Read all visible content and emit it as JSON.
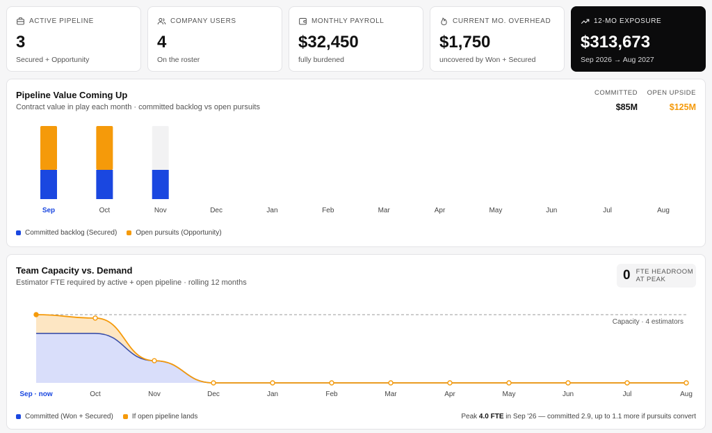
{
  "kpis": [
    {
      "label": "Active Pipeline",
      "value": "3",
      "sub": "Secured + Opportunity",
      "icon": "briefcase-icon"
    },
    {
      "label": "Company Users",
      "value": "4",
      "sub": "On the roster",
      "icon": "users-icon"
    },
    {
      "label": "Monthly Payroll",
      "value": "$32,450",
      "sub": "fully burdened",
      "icon": "wallet-icon"
    },
    {
      "label": "Current Mo. Overhead",
      "value": "$1,750",
      "sub": "uncovered by Won + Secured",
      "icon": "flame-icon"
    },
    {
      "label": "12-Mo Exposure",
      "value": "$313,673",
      "sub": "Sep 2026 → Aug 2027",
      "icon": "trending-up-icon"
    }
  ],
  "pipeline": {
    "title": "Pipeline Value Coming Up",
    "subtitle": "Contract value in play each month · committed backlog vs open pursuits",
    "committed_label": "Committed",
    "committed_value": "$85M",
    "upside_label": "Open Upside",
    "upside_value": "$125M",
    "legend": {
      "committed": "Committed backlog (Secured)",
      "open": "Open pursuits (Opportunity)"
    }
  },
  "capacity": {
    "title": "Team Capacity vs. Demand",
    "subtitle": "Estimator FTE required by active + open pipeline · rolling 12 months",
    "headroom_value": "0",
    "headroom_label": "FTE Headroom at Peak",
    "capacity_line_label": "Capacity · 4 estimators",
    "legend": {
      "committed": "Committed (Won + Secured)",
      "open": "If open pipeline lands"
    },
    "peak_note": {
      "prefix": "Peak",
      "value": "4.0 FTE",
      "suffix": "in Sep '26 — committed 2.9, up to 1.1 more if pursuits convert"
    }
  },
  "colors": {
    "committed": "#1a47e0",
    "open": "#f59a0a",
    "empty": "#f2f2f3",
    "committed_fill": "#d9defa",
    "open_fill": "#fde6c3"
  },
  "chart_data": [
    {
      "type": "bar",
      "stacked": true,
      "categories": [
        "Sep",
        "Oct",
        "Nov",
        "Dec",
        "Jan",
        "Feb",
        "Mar",
        "Apr",
        "May",
        "Jun",
        "Jul",
        "Aug"
      ],
      "highlight_category": "Sep",
      "series": [
        {
          "name": "Committed backlog (Secured)",
          "values": [
            40,
            40,
            40,
            0,
            0,
            0,
            0,
            0,
            0,
            0,
            0,
            0
          ]
        },
        {
          "name": "Open pursuits (Opportunity)",
          "values": [
            60,
            60,
            0,
            0,
            0,
            0,
            0,
            0,
            0,
            0,
            0,
            0
          ]
        }
      ],
      "ylim": [
        0,
        100
      ],
      "grid": false,
      "legend": "bottom-left"
    },
    {
      "type": "area",
      "categories": [
        "Sep · now",
        "Oct",
        "Nov",
        "Dec",
        "Jan",
        "Feb",
        "Mar",
        "Apr",
        "May",
        "Jun",
        "Jul",
        "Aug"
      ],
      "series": [
        {
          "name": "Committed (Won + Secured)",
          "values": [
            2.9,
            2.9,
            1.3,
            0,
            0,
            0,
            0,
            0,
            0,
            0,
            0,
            0
          ]
        },
        {
          "name": "If open pipeline lands",
          "values": [
            4.0,
            3.8,
            1.3,
            0,
            0,
            0,
            0,
            0,
            0,
            0,
            0,
            0
          ]
        }
      ],
      "capacity": 4,
      "ylim": [
        0,
        4
      ],
      "grid": false,
      "legend": "bottom-left"
    }
  ]
}
